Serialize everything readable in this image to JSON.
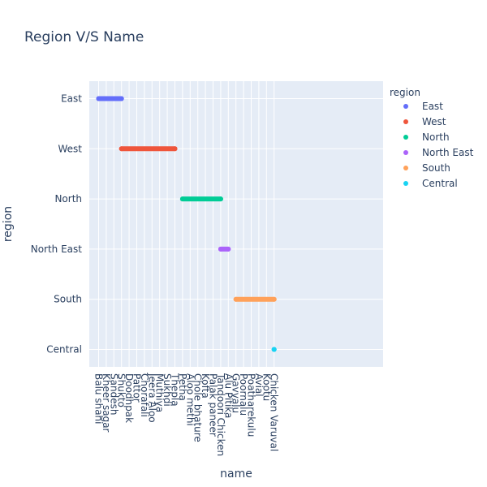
{
  "chart_data": {
    "type": "scatter",
    "title": "Region V/S Name",
    "xlabel": "name",
    "ylabel": "region",
    "legend_title": "region",
    "legend_position": "right",
    "grid": true,
    "plot_background": "#e5ecf6",
    "categories": [
      "Balu shahi",
      "Kheer sagar",
      "Sandesh",
      "Shukto",
      "Doodhpak",
      "Pattor",
      "Chorafali",
      "Jeera Aloo",
      "Muthiya",
      "Sukhdi",
      "Thepla",
      "Petha",
      "Aloo methi",
      "Chole bhature",
      "Kofta",
      "Palak paneer",
      "Tandoori Chicken",
      "Alu Pitika",
      "Gavvalu",
      "Poornalu",
      "Poatharekulu",
      "Avial",
      "Kootu",
      "Chicken Varuval"
    ],
    "y_categories": [
      "East",
      "West",
      "North",
      "North East",
      "South",
      "Central"
    ],
    "series": [
      {
        "name": "East",
        "color": "#636efa",
        "x": [
          "Balu shahi",
          "Shukto"
        ]
      },
      {
        "name": "West",
        "color": "#ef553b",
        "x": [
          "Shukto",
          "Thepla"
        ]
      },
      {
        "name": "North",
        "color": "#00cc96",
        "x": [
          "Petha",
          "Tandoori Chicken"
        ]
      },
      {
        "name": "North East",
        "color": "#ab63fa",
        "x": [
          "Tandoori Chicken",
          "Alu Pitika"
        ]
      },
      {
        "name": "South",
        "color": "#ffa15a",
        "x": [
          "Gavvalu",
          "Chicken Varuval"
        ]
      },
      {
        "name": "Central",
        "color": "#19d3f3",
        "x": [
          "Chicken Varuval",
          "Chicken Varuval"
        ]
      }
    ]
  }
}
